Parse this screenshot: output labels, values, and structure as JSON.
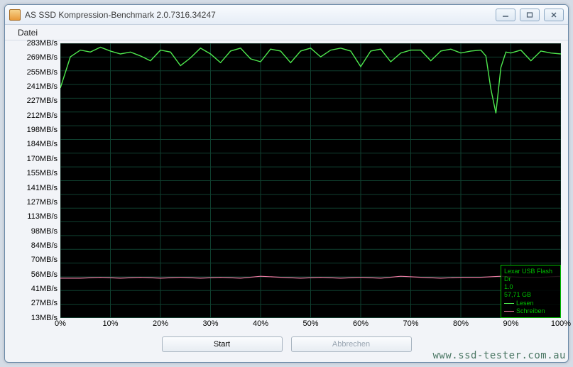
{
  "window": {
    "title": "AS SSD Kompression-Benchmark 2.0.7316.34247"
  },
  "menu": {
    "file": "Datei"
  },
  "chart": {
    "type": "line",
    "background_color": "#000000",
    "grid_color": "#0f3f2f",
    "ymax": 283,
    "ymin": 0,
    "ystep": 14,
    "xmin": 0,
    "xmax": 100,
    "xstep": 10,
    "ylabels": [
      "283MB/s",
      "269MB/s",
      "255MB/s",
      "241MB/s",
      "227MB/s",
      "212MB/s",
      "198MB/s",
      "184MB/s",
      "170MB/s",
      "155MB/s",
      "141MB/s",
      "127MB/s",
      "113MB/s",
      "98MB/s",
      "84MB/s",
      "70MB/s",
      "56MB/s",
      "41MB/s",
      "27MB/s",
      "13MB/s"
    ],
    "xlabels": [
      "0%",
      "10%",
      "20%",
      "30%",
      "40%",
      "50%",
      "60%",
      "70%",
      "80%",
      "90%",
      "100%"
    ],
    "series": {
      "read": {
        "name": "Lesen",
        "color": "#4ee84e",
        "line_width": 1.4,
        "points": [
          [
            0,
            237
          ],
          [
            2,
            269
          ],
          [
            4,
            276
          ],
          [
            6,
            274
          ],
          [
            8,
            279
          ],
          [
            10,
            275
          ],
          [
            12,
            272
          ],
          [
            14,
            274
          ],
          [
            16,
            270
          ],
          [
            18,
            265
          ],
          [
            20,
            276
          ],
          [
            22,
            274
          ],
          [
            24,
            260
          ],
          [
            26,
            268
          ],
          [
            28,
            278
          ],
          [
            30,
            272
          ],
          [
            32,
            263
          ],
          [
            34,
            275
          ],
          [
            36,
            278
          ],
          [
            38,
            267
          ],
          [
            40,
            264
          ],
          [
            42,
            277
          ],
          [
            44,
            275
          ],
          [
            46,
            263
          ],
          [
            48,
            275
          ],
          [
            50,
            278
          ],
          [
            52,
            269
          ],
          [
            54,
            276
          ],
          [
            56,
            278
          ],
          [
            58,
            275
          ],
          [
            60,
            259
          ],
          [
            62,
            275
          ],
          [
            64,
            277
          ],
          [
            66,
            264
          ],
          [
            68,
            273
          ],
          [
            70,
            276
          ],
          [
            72,
            276
          ],
          [
            74,
            265
          ],
          [
            76,
            275
          ],
          [
            78,
            277
          ],
          [
            80,
            273
          ],
          [
            82,
            275
          ],
          [
            84,
            276
          ],
          [
            85,
            270
          ],
          [
            86,
            236
          ],
          [
            87,
            211
          ],
          [
            88,
            258
          ],
          [
            89,
            274
          ],
          [
            90,
            273
          ],
          [
            92,
            276
          ],
          [
            94,
            265
          ],
          [
            96,
            275
          ],
          [
            98,
            273
          ],
          [
            100,
            272
          ]
        ]
      },
      "write": {
        "name": "Schreiben",
        "color": "#e87aa0",
        "line_width": 1.2,
        "points": [
          [
            0,
            41
          ],
          [
            4,
            41
          ],
          [
            8,
            42
          ],
          [
            12,
            41
          ],
          [
            16,
            42
          ],
          [
            20,
            41
          ],
          [
            24,
            42
          ],
          [
            28,
            41
          ],
          [
            32,
            42
          ],
          [
            36,
            41
          ],
          [
            40,
            43
          ],
          [
            44,
            42
          ],
          [
            48,
            41
          ],
          [
            52,
            42
          ],
          [
            56,
            41
          ],
          [
            60,
            42
          ],
          [
            64,
            41
          ],
          [
            68,
            43
          ],
          [
            72,
            42
          ],
          [
            76,
            41
          ],
          [
            80,
            42
          ],
          [
            84,
            42
          ],
          [
            88,
            43
          ],
          [
            92,
            42
          ],
          [
            96,
            42
          ],
          [
            100,
            43
          ]
        ]
      }
    }
  },
  "legend": {
    "device_line1": "Lexar USB Flash Dr",
    "device_line2": "1.0",
    "capacity": "57,71 GB",
    "read_label": "Lesen",
    "write_label": "Schreiben"
  },
  "buttons": {
    "start": "Start",
    "abort": "Abbrechen"
  },
  "watermark": "www.ssd-tester.com.au"
}
